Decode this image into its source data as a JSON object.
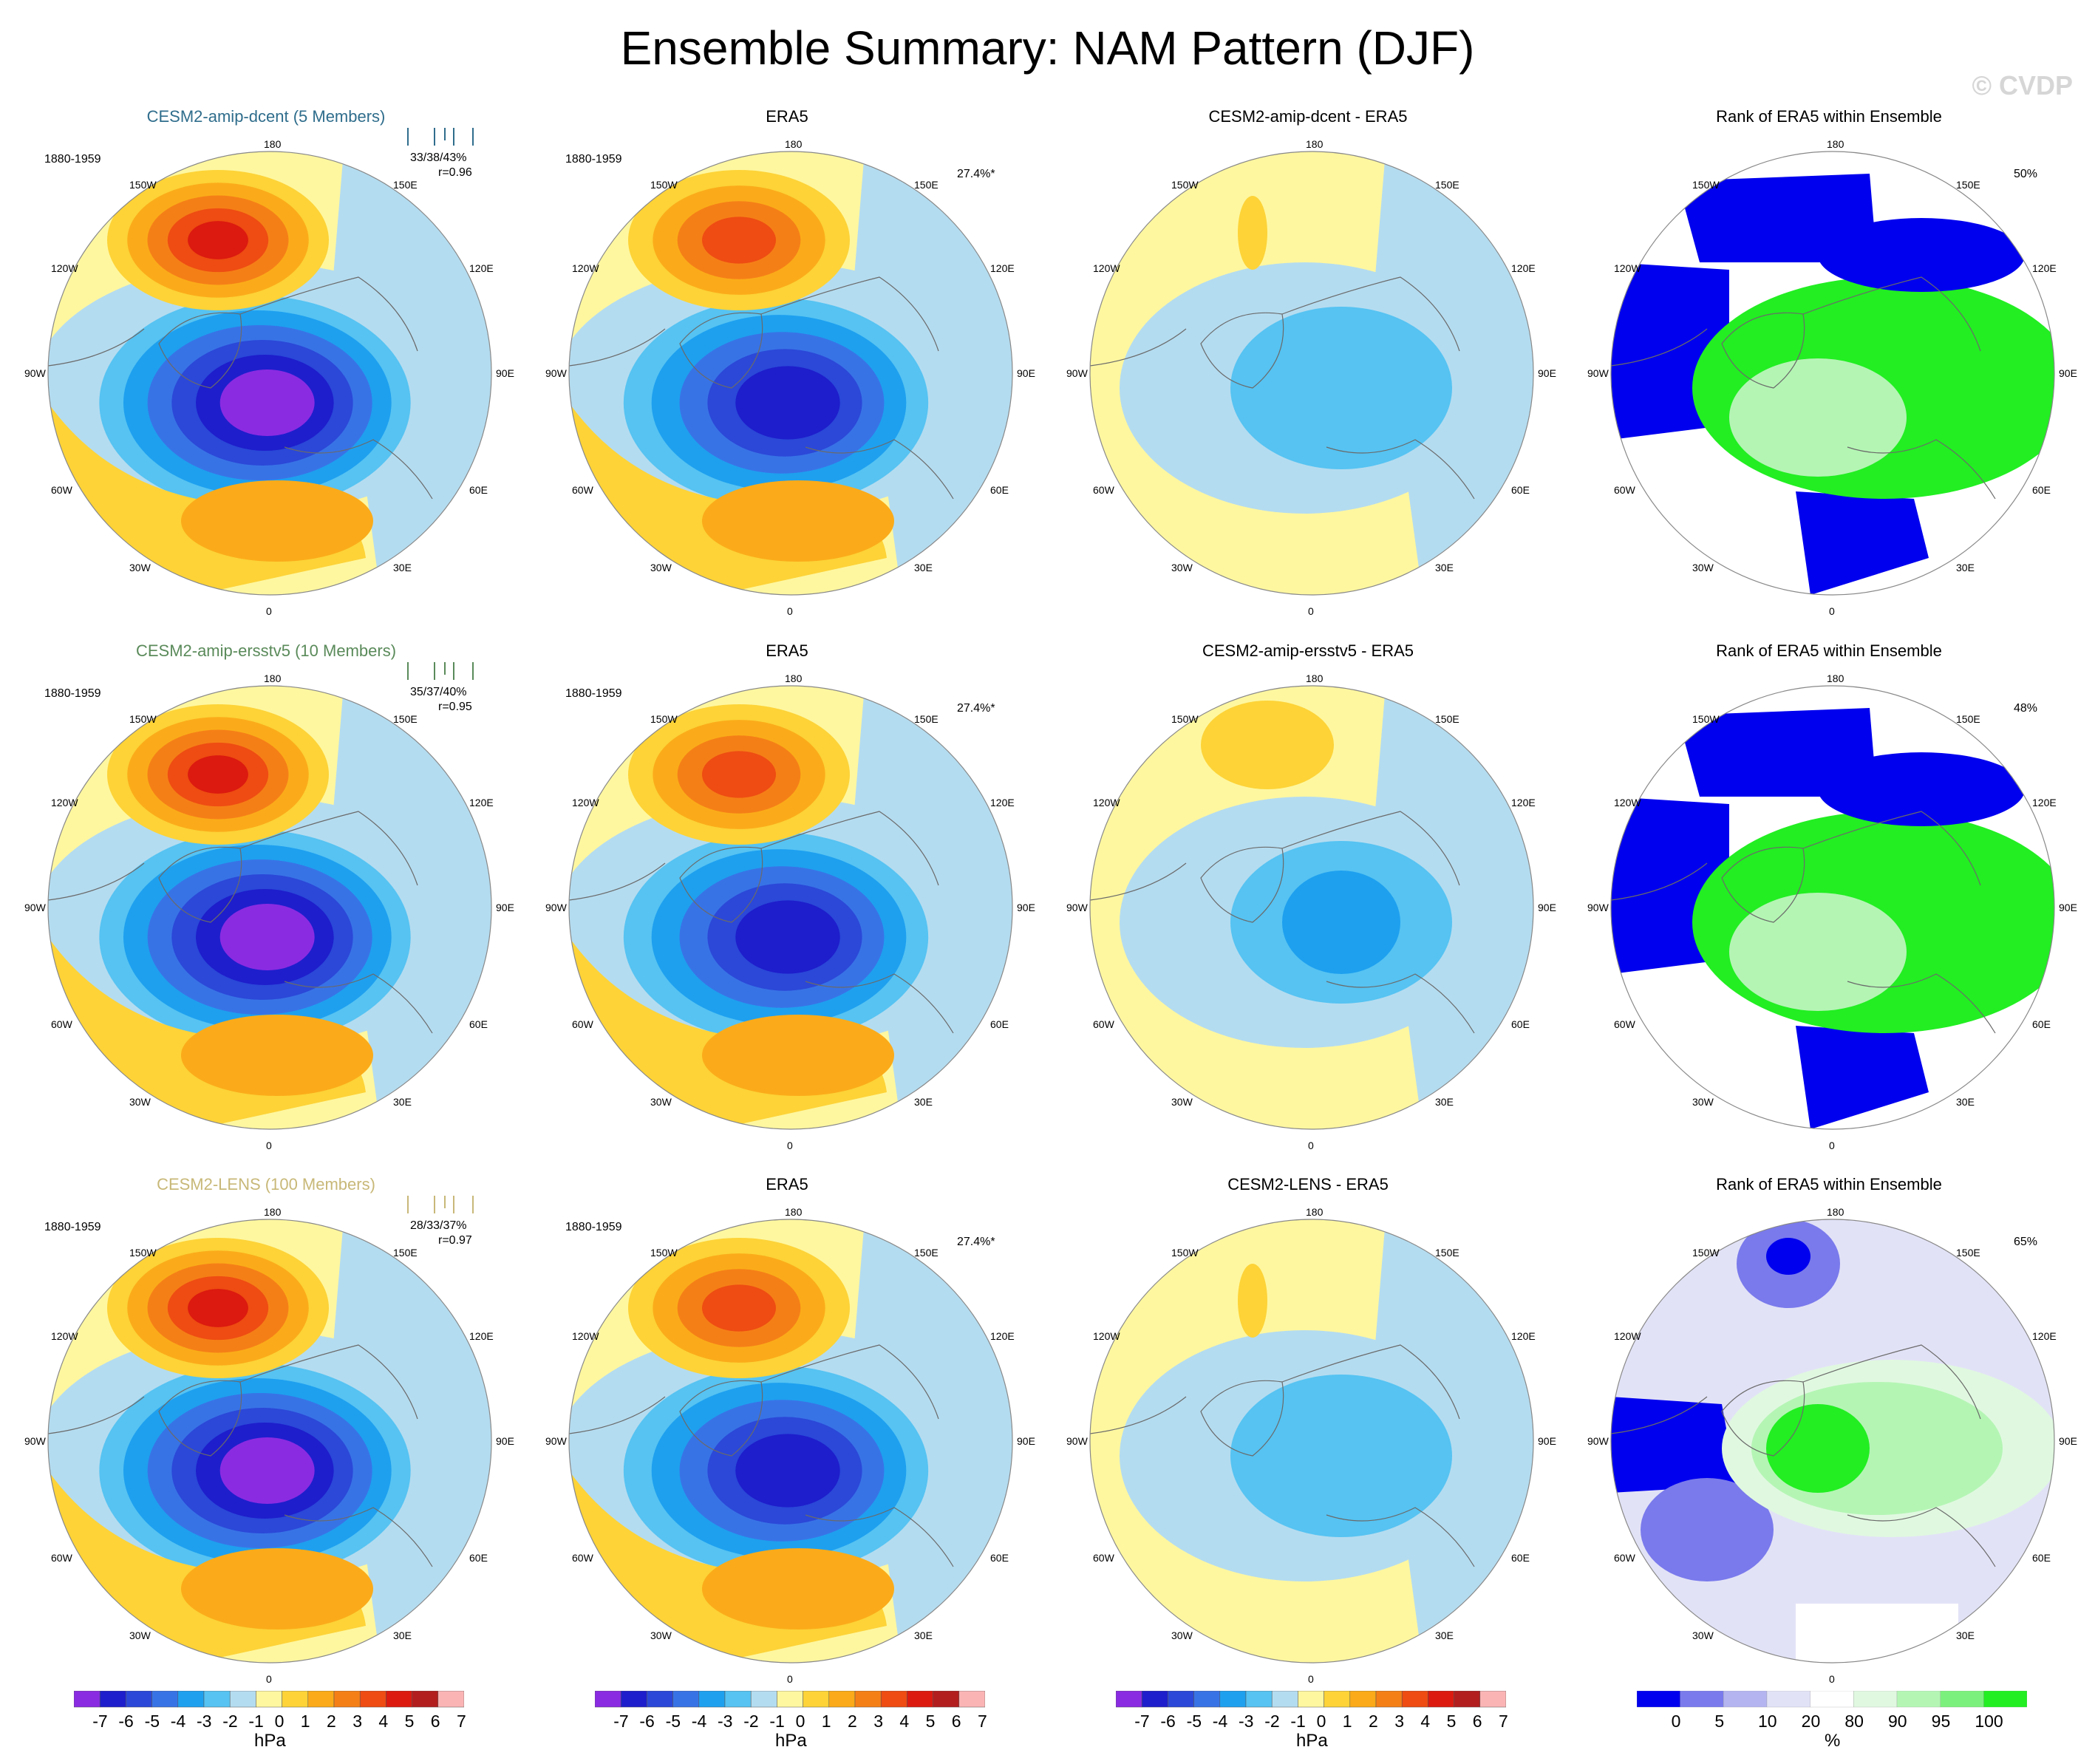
{
  "title": "Ensemble Summary: NAM Pattern (DJF)",
  "watermark": "© CVDP",
  "colors": {
    "diverging": [
      "#8a2be2",
      "#1e1ecc",
      "#2b48d8",
      "#3873e6",
      "#1ea0ef",
      "#56c3f2",
      "#b4dcf0",
      "#fef7a0",
      "#fdd337",
      "#fbab19",
      "#f57f17",
      "#ee4c12",
      "#dc1a0f",
      "#b21e1e",
      "#fbb4b4"
    ],
    "rank": [
      "#0000ee",
      "#7a7aec",
      "#b4b4f0",
      "#e2e2f7",
      "#ffffff",
      "#e0f8e0",
      "#b4f5b4",
      "#7cf07c",
      "#22ee22"
    ]
  },
  "panels": [
    {
      "title": "CESM2-amip-dcent (5 Members)",
      "title_color": "#2f6d8c",
      "type": "model",
      "period": "1880-1959",
      "stats": "33/38/43%",
      "corr": "r=0.96",
      "strength": 1.0,
      "pct": ""
    },
    {
      "title": "ERA5",
      "title_color": "#000000",
      "type": "obs",
      "period": "1880-1959",
      "stats": "",
      "corr": "",
      "strength": 0.85,
      "pct": "27.4%*"
    },
    {
      "title": "CESM2-amip-dcent - ERA5",
      "title_color": "#000000",
      "type": "diff",
      "period": "",
      "stats": "",
      "corr": "",
      "strength": 0.35,
      "pct": ""
    },
    {
      "title": "Rank of ERA5 within Ensemble",
      "title_color": "#000000",
      "type": "rank",
      "period": "",
      "stats": "",
      "corr": "",
      "strength": 1.0,
      "pct": "50%"
    },
    {
      "title": "CESM2-amip-ersstv5 (10 Members)",
      "title_color": "#5a8a5a",
      "type": "model",
      "period": "1880-1959",
      "stats": "35/37/40%",
      "corr": "r=0.95",
      "strength": 1.05,
      "pct": ""
    },
    {
      "title": "ERA5",
      "title_color": "#000000",
      "type": "obs",
      "period": "1880-1959",
      "stats": "",
      "corr": "",
      "strength": 0.85,
      "pct": "27.4%*"
    },
    {
      "title": "CESM2-amip-ersstv5 - ERA5",
      "title_color": "#000000",
      "type": "diff",
      "period": "",
      "stats": "",
      "corr": "",
      "strength": 0.4,
      "pct": ""
    },
    {
      "title": "Rank of ERA5 within Ensemble",
      "title_color": "#000000",
      "type": "rank",
      "period": "",
      "stats": "",
      "corr": "",
      "strength": 1.0,
      "pct": "48%"
    },
    {
      "title": "CESM2-LENS (100 Members)",
      "title_color": "#c8b878",
      "type": "model",
      "period": "1880-1959",
      "stats": "28/33/37%",
      "corr": "r=0.97",
      "strength": 0.95,
      "pct": ""
    },
    {
      "title": "ERA5",
      "title_color": "#000000",
      "type": "obs",
      "period": "1880-1959",
      "stats": "",
      "corr": "",
      "strength": 0.85,
      "pct": "27.4%*"
    },
    {
      "title": "CESM2-LENS - ERA5",
      "title_color": "#000000",
      "type": "diff",
      "period": "",
      "stats": "",
      "corr": "",
      "strength": 0.3,
      "pct": ""
    },
    {
      "title": "Rank of ERA5 within Ensemble",
      "title_color": "#000000",
      "type": "rank",
      "period": "",
      "stats": "",
      "corr": "",
      "strength": 0.6,
      "pct": "65%"
    }
  ],
  "map_labels": {
    "lon_top": "180",
    "lon_bottom": "0",
    "lon_150w": "150W",
    "lon_150e": "150E",
    "lon_120w": "120W",
    "lon_120e": "120E",
    "lon_90w": "90W",
    "lon_90e": "90E",
    "lon_60w": "60W",
    "lon_60e": "60E",
    "lon_30w": "30W",
    "lon_30e": "30E"
  },
  "chart_data": [
    {
      "type": "colorbar",
      "ticks": [
        "-7",
        "-6",
        "-5",
        "-4",
        "-3",
        "-2",
        "-1",
        "0",
        "1",
        "2",
        "3",
        "4",
        "5",
        "6",
        "7"
      ],
      "unit": "hPa",
      "count": 3
    },
    {
      "type": "colorbar",
      "ticks": [
        "0",
        "5",
        "10",
        "20",
        "80",
        "90",
        "95",
        "100"
      ],
      "unit": "%"
    }
  ]
}
